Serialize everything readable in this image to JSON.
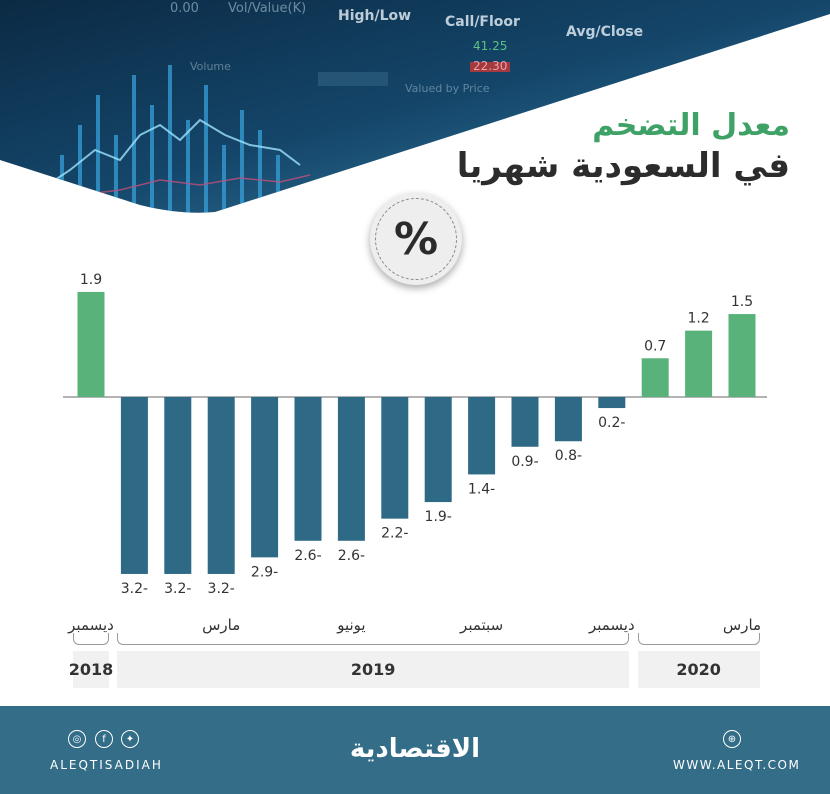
{
  "title": {
    "line1": "معدل التضخم",
    "line2": "في السعودية شهريا"
  },
  "badge": "%",
  "colors": {
    "positive": "#58b27a",
    "negative": "#2e6a86",
    "title_green": "#3ea267",
    "footer": "#336d87"
  },
  "chart_data": {
    "type": "bar",
    "unit": "%",
    "categories": [
      "2018-12",
      "2019-01",
      "2019-02",
      "2019-03",
      "2019-04",
      "2019-05",
      "2019-06",
      "2019-07",
      "2019-08",
      "2019-09",
      "2019-10",
      "2019-11",
      "2019-12",
      "2020-01",
      "2020-02",
      "2020-03"
    ],
    "values": [
      1.9,
      -3.2,
      -3.2,
      -3.2,
      -2.9,
      -2.6,
      -2.6,
      -2.2,
      -1.9,
      -1.4,
      -0.9,
      -0.8,
      -0.2,
      0.7,
      1.2,
      1.5
    ],
    "value_labels": [
      "1.9",
      "3.2-",
      "3.2-",
      "3.2-",
      "2.9-",
      "2.6-",
      "2.6-",
      "2.2-",
      "1.9-",
      "1.4-",
      "0.9-",
      "0.8-",
      "0.2-",
      "0.7",
      "1.2",
      "1.5"
    ],
    "ylim": [
      -3.2,
      1.9
    ],
    "grid": false,
    "legend": "none",
    "month_labels": [
      {
        "text": "ديسمبر",
        "index": 0
      },
      {
        "text": "مارس",
        "index": 3
      },
      {
        "text": "يونيو",
        "index": 6
      },
      {
        "text": "سبتمبر",
        "index": 9
      },
      {
        "text": "ديسمبر",
        "index": 12
      },
      {
        "text": "مارس",
        "index": 15
      }
    ],
    "years": [
      {
        "text": "2018",
        "from": 0,
        "to": 0
      },
      {
        "text": "2019",
        "from": 1,
        "to": 12
      },
      {
        "text": "2020",
        "from": 13,
        "to": 15
      }
    ]
  },
  "header_art": {
    "labels": [
      "0.00",
      "Vol/Value(K)",
      "High/Low",
      "Call/Floor",
      "Avg/Close",
      "41.25",
      "22.30",
      "Volume",
      "Valued by Price"
    ]
  },
  "footer": {
    "logo": "الاقتصادية",
    "handle": "ALEQTISADIAH",
    "website": "WWW.ALEQT.COM",
    "icons": [
      "instagram-icon",
      "facebook-icon",
      "twitter-icon",
      "web-icon"
    ]
  }
}
